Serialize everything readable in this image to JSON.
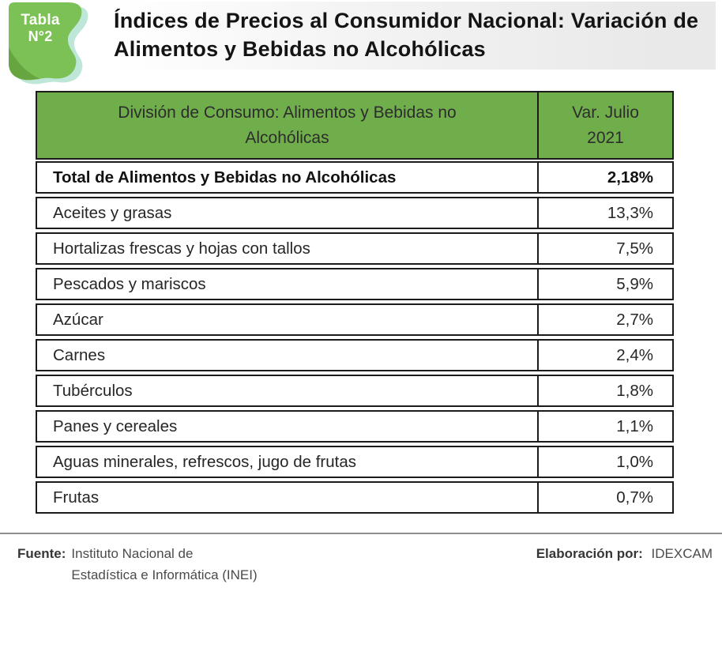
{
  "badge": {
    "line1": "Tabla",
    "line2": "N°2"
  },
  "title": "Índices de Precios al Consumidor Nacional: Variación de Alimentos y Bebidas no Alcohólicas",
  "table": {
    "header": {
      "category": "División de Consumo: Alimentos y Bebidas no Alcohólicas",
      "value": "Var. Julio 2021"
    },
    "rows": [
      {
        "label": "Total de Alimentos y Bebidas no Alcohólicas",
        "value": "2,18%",
        "bold": true
      },
      {
        "label": "Aceites y grasas",
        "value": "13,3%"
      },
      {
        "label": "Hortalizas frescas y hojas con tallos",
        "value": "7,5%"
      },
      {
        "label": "Pescados y mariscos",
        "value": "5,9%"
      },
      {
        "label": "Azúcar",
        "value": "2,7%"
      },
      {
        "label": "Carnes",
        "value": "2,4%"
      },
      {
        "label": "Tubérculos",
        "value": "1,8%"
      },
      {
        "label": "Panes y cereales",
        "value": "1,1%"
      },
      {
        "label": "Aguas minerales, refrescos, jugo de frutas",
        "value": "1,0%"
      },
      {
        "label": "Frutas",
        "value": "0,7%"
      }
    ]
  },
  "footer": {
    "source_label": "Fuente:",
    "source_line1": "Instituto Nacional de",
    "source_line2": "Estadística e Informática (INEI)",
    "elaboration_label": "Elaboración por:",
    "elaboration_value": "IDEXCAM"
  },
  "colors": {
    "header_green": "#70ad4b",
    "badge_green": "#7cc156",
    "badge_shadow_green": "#64a03d",
    "teal_accent": "#bfe7d9",
    "border": "#1b1b1b"
  },
  "chart_data": {
    "type": "table",
    "title": "Índices de Precios al Consumidor Nacional: Variación de Alimentos y Bebidas no Alcohólicas",
    "columns": [
      "División de Consumo: Alimentos y Bebidas no Alcohólicas",
      "Var. Julio 2021"
    ],
    "categories": [
      "Total de Alimentos y Bebidas no Alcohólicas",
      "Aceites y grasas",
      "Hortalizas frescas y hojas con tallos",
      "Pescados y mariscos",
      "Azúcar",
      "Carnes",
      "Tubérculos",
      "Panes y cereales",
      "Aguas minerales, refrescos, jugo de frutas",
      "Frutas"
    ],
    "values": [
      2.18,
      13.3,
      7.5,
      5.9,
      2.7,
      2.4,
      1.8,
      1.1,
      1.0,
      0.7
    ]
  }
}
